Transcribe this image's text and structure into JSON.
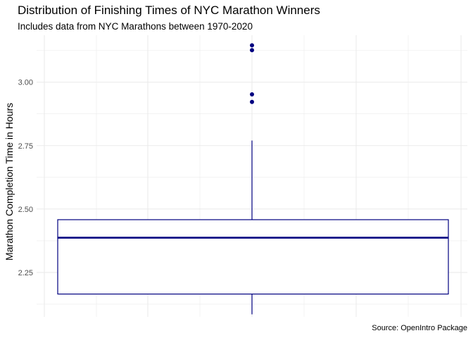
{
  "chart_data": {
    "type": "box",
    "title": "Distribution of Finishing Times of NYC Marathon Winners",
    "subtitle": "Includes data from NYC Marathons between 1970-2020",
    "caption": "Source: OpenIntro Package",
    "ylabel": "Marathon Completion Time in Hours",
    "xlabel": "",
    "ylim": [
      2.075,
      3.185
    ],
    "yticks": [
      2.25,
      2.5,
      2.75,
      3.0
    ],
    "ytick_labels": [
      "2.25",
      "2.50",
      "2.75",
      "3.00"
    ],
    "grid": true,
    "box": {
      "whisker_low": 2.085,
      "q1": 2.165,
      "median": 2.387,
      "q3": 2.458,
      "whisker_high": 2.77,
      "outliers": [
        2.922,
        2.952,
        3.126,
        3.145
      ]
    },
    "colors": {
      "box": "#000080",
      "outlier": "#000080",
      "grid": "#ebebeb"
    }
  }
}
